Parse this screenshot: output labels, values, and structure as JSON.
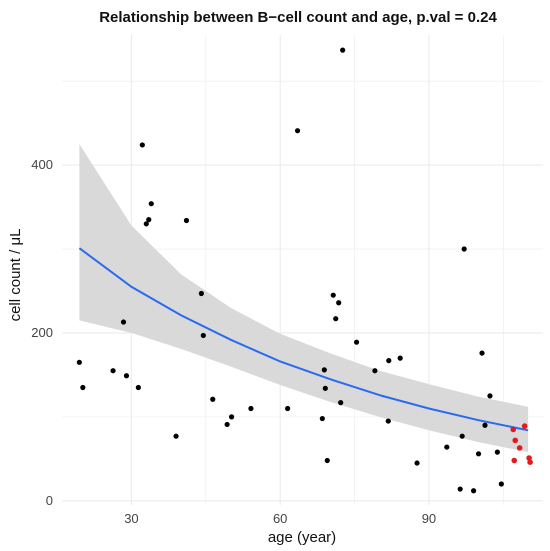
{
  "chart_data": {
    "type": "scatter",
    "title": "Relationship between B−cell count and age, p.val = 0.24",
    "xlabel": "age (year)",
    "ylabel": "cell count / μL",
    "xlim": [
      16,
      113
    ],
    "ylim": [
      -5,
      555
    ],
    "x_ticks": [
      30,
      60,
      90
    ],
    "y_ticks": [
      0,
      200,
      400
    ],
    "grid": true,
    "background": "#ffffff",
    "point_color": "#000000",
    "highlight_color": "#e41a1c",
    "fit_color": "#2a6af0",
    "ci_color": "#d9d9d9",
    "points": [
      {
        "x": 19.5,
        "y": 165
      },
      {
        "x": 20.2,
        "y": 135
      },
      {
        "x": 26.3,
        "y": 155
      },
      {
        "x": 28.4,
        "y": 213
      },
      {
        "x": 29.0,
        "y": 149
      },
      {
        "x": 31.4,
        "y": 135
      },
      {
        "x": 32.2,
        "y": 424
      },
      {
        "x": 33.0,
        "y": 330
      },
      {
        "x": 33.5,
        "y": 335
      },
      {
        "x": 34.0,
        "y": 354
      },
      {
        "x": 39.0,
        "y": 77
      },
      {
        "x": 41.1,
        "y": 334
      },
      {
        "x": 44.1,
        "y": 247
      },
      {
        "x": 44.5,
        "y": 197
      },
      {
        "x": 46.4,
        "y": 121
      },
      {
        "x": 49.3,
        "y": 91
      },
      {
        "x": 50.2,
        "y": 100
      },
      {
        "x": 54.1,
        "y": 110
      },
      {
        "x": 61.5,
        "y": 110
      },
      {
        "x": 63.5,
        "y": 441
      },
      {
        "x": 68.5,
        "y": 98
      },
      {
        "x": 68.9,
        "y": 156
      },
      {
        "x": 69.1,
        "y": 134
      },
      {
        "x": 69.5,
        "y": 48
      },
      {
        "x": 70.7,
        "y": 245
      },
      {
        "x": 71.2,
        "y": 217
      },
      {
        "x": 71.8,
        "y": 236
      },
      {
        "x": 72.2,
        "y": 117
      },
      {
        "x": 72.6,
        "y": 537
      },
      {
        "x": 75.4,
        "y": 189
      },
      {
        "x": 79.1,
        "y": 155
      },
      {
        "x": 81.8,
        "y": 95
      },
      {
        "x": 81.9,
        "y": 167
      },
      {
        "x": 84.2,
        "y": 170
      },
      {
        "x": 87.6,
        "y": 45
      },
      {
        "x": 93.6,
        "y": 64
      },
      {
        "x": 96.3,
        "y": 14
      },
      {
        "x": 96.7,
        "y": 77
      },
      {
        "x": 97.1,
        "y": 300
      },
      {
        "x": 99.0,
        "y": 12
      },
      {
        "x": 100.0,
        "y": 56
      },
      {
        "x": 100.7,
        "y": 176
      },
      {
        "x": 101.3,
        "y": 90
      },
      {
        "x": 102.3,
        "y": 125
      },
      {
        "x": 103.8,
        "y": 58
      },
      {
        "x": 104.6,
        "y": 20
      }
    ],
    "highlight_points": [
      {
        "x": 107.0,
        "y": 85
      },
      {
        "x": 107.4,
        "y": 72
      },
      {
        "x": 107.2,
        "y": 48
      },
      {
        "x": 108.3,
        "y": 63
      },
      {
        "x": 109.3,
        "y": 89
      },
      {
        "x": 110.2,
        "y": 51
      },
      {
        "x": 110.4,
        "y": 46
      }
    ],
    "fit": {
      "x": [
        19.5,
        30,
        40,
        50,
        60,
        70,
        80,
        90,
        100,
        110
      ],
      "y": [
        301,
        255,
        221,
        192,
        166,
        145,
        126,
        110,
        96,
        84
      ],
      "lower": [
        215,
        200,
        181,
        160,
        138,
        118,
        100,
        84,
        70,
        58
      ],
      "upper": [
        425,
        328,
        270,
        230,
        199,
        176,
        155,
        139,
        124,
        112
      ]
    }
  }
}
